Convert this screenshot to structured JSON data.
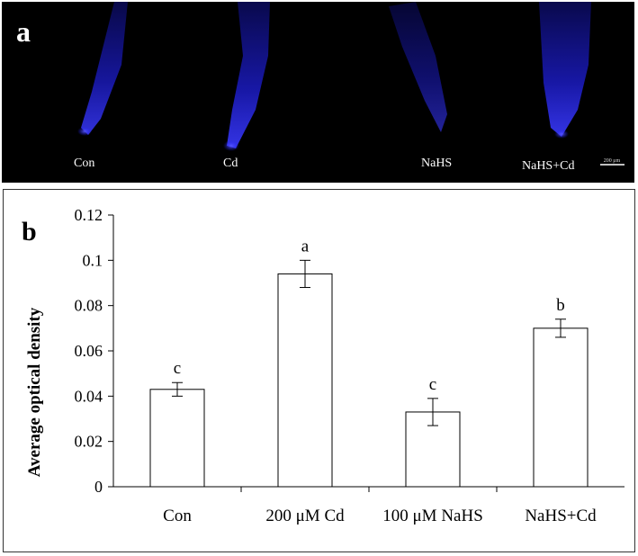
{
  "panel_a": {
    "letter": "a",
    "labels": [
      "Con",
      "Cd",
      "NaHS",
      "NaHS+Cd"
    ],
    "scale_bar_label": "200 μm",
    "stain_color": "#2a2cff"
  },
  "panel_b": {
    "letter": "b"
  },
  "chart_data": {
    "type": "bar",
    "title": "",
    "xlabel": "",
    "ylabel": "Average optical density",
    "categories": [
      "Con",
      "200 μM Cd",
      "100 μM NaHS",
      "NaHS+Cd"
    ],
    "values": [
      0.043,
      0.094,
      0.033,
      0.07
    ],
    "errors": [
      0.003,
      0.006,
      0.006,
      0.004
    ],
    "significance_letters": [
      "c",
      "a",
      "c",
      "b"
    ],
    "ylim": [
      0,
      0.12
    ],
    "yticks": [
      0,
      0.02,
      0.04,
      0.06,
      0.08,
      0.1,
      0.12
    ],
    "ytick_labels": [
      "0",
      "0.02",
      "0.04",
      "0.06",
      "0.08",
      "0.1",
      "0.12"
    ],
    "grid": false,
    "bar_fill": "#ffffff",
    "bar_stroke": "#000000"
  }
}
